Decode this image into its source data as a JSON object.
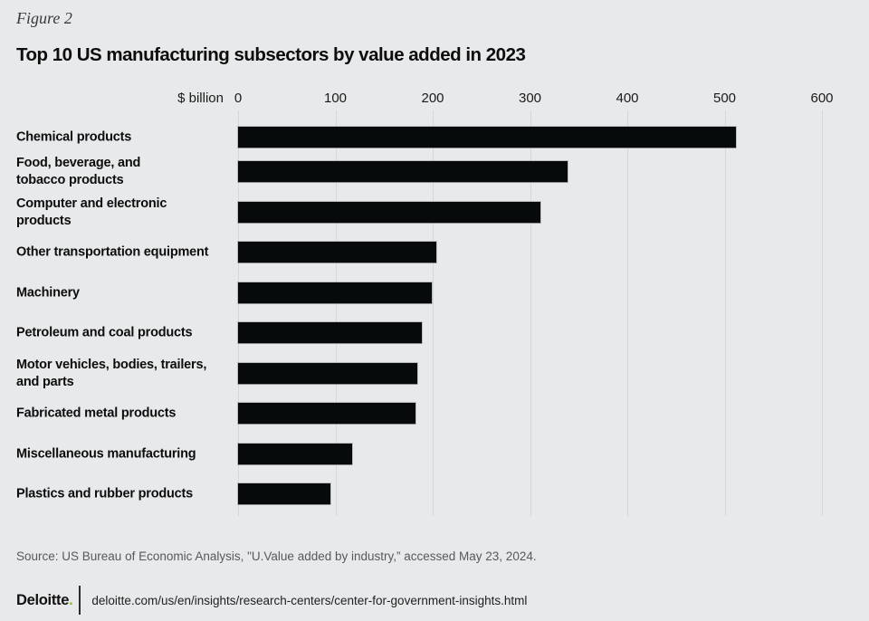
{
  "figure_label": "Figure 2",
  "title": "Top 10 US manufacturing subsectors by value added in 2023",
  "chart_data": {
    "type": "bar",
    "orientation": "horizontal",
    "title": "Top 10 US manufacturing subsectors by value added in 2023",
    "unit_label": "$ billion",
    "categories": [
      "Chemical products",
      "Food, beverage, and\ntobacco products",
      "Computer and electronic\nproducts",
      "Other transportation equipment",
      "Machinery",
      "Petroleum and coal products",
      "Motor vehicles, bodies, trailers,\nand parts",
      "Fabricated metal products",
      "Miscellaneous manufacturing",
      "Plastics and rubber products"
    ],
    "values": [
      512,
      339,
      311,
      204,
      199,
      189,
      184,
      182,
      117,
      95
    ],
    "xlim": [
      0,
      600
    ],
    "xticks": [
      0,
      100,
      200,
      300,
      400,
      500,
      600
    ],
    "grid": "vertical-gridlines",
    "legend": "none",
    "bar_color": "#070a0b"
  },
  "source_note": "Source: US Bureau of Economic Analysis, \"U.Value added by industry,” accessed May 23, 2024.",
  "footer": {
    "brand": "Deloitte",
    "brand_dot": ".",
    "brand_dot_color": "#86bc25",
    "url": "deloitte.com/us/en/insights/research-centers/center-for-government-insights.html"
  },
  "colors": {
    "background": "#e8e9ea",
    "bar": "#070a0b",
    "gridline": "#d5d8d9",
    "source_text": "#57595b"
  }
}
